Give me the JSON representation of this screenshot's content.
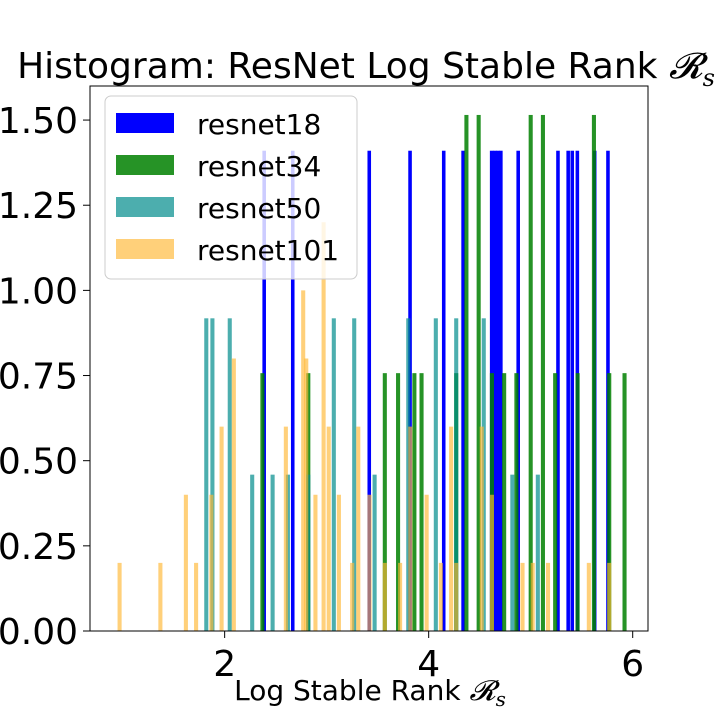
{
  "chart_data": {
    "type": "bar",
    "histogram": true,
    "title": "Histogram: ResNet Log Stable Rank ",
    "title_math": "𝓡",
    "title_sub": "s",
    "xlabel": "Log Stable Rank ",
    "xlabel_math": "𝓡",
    "xlabel_sub": "s",
    "ylabel": "",
    "xlim": [
      0.68,
      6.15
    ],
    "ylim": [
      0,
      1.6
    ],
    "xticks": [
      2,
      4,
      6
    ],
    "xtick_labels": [
      "2",
      "4",
      "6"
    ],
    "yticks": [
      0,
      0.25,
      0.5,
      0.75,
      1.0,
      1.25,
      1.5
    ],
    "ytick_labels": [
      "0.00",
      "0.25",
      "0.50",
      "0.75",
      "1.00",
      "1.25",
      "1.50"
    ],
    "grid": false,
    "legend_position": "top-left",
    "series": [
      {
        "name": "resnet18",
        "color": "#0000ff",
        "opacity": 1.0,
        "bin_width": 0.035,
        "bars": [
          [
            2.37,
            1.41
          ],
          [
            2.65,
            1.41
          ],
          [
            3.4,
            1.41
          ],
          [
            3.8,
            1.41
          ],
          [
            4.13,
            1.41
          ],
          [
            4.32,
            1.41
          ],
          [
            4.6,
            1.41
          ],
          [
            4.63,
            1.41
          ],
          [
            4.66,
            1.41
          ],
          [
            4.69,
            1.41
          ],
          [
            4.86,
            1.41
          ],
          [
            5.25,
            1.41
          ],
          [
            5.35,
            1.41
          ],
          [
            5.39,
            1.41
          ],
          [
            5.44,
            1.41
          ],
          [
            5.61,
            1.41
          ],
          [
            5.74,
            1.41
          ]
        ]
      },
      {
        "name": "resnet34",
        "color": "#008000",
        "opacity": 0.85,
        "bin_width": 0.04,
        "bars": [
          [
            2.35,
            0.757
          ],
          [
            2.8,
            0.757
          ],
          [
            3.55,
            0.757
          ],
          [
            3.68,
            0.757
          ],
          [
            3.84,
            0.757
          ],
          [
            3.91,
            0.757
          ],
          [
            4.25,
            0.757
          ],
          [
            4.35,
            1.515
          ],
          [
            4.47,
            1.515
          ],
          [
            4.6,
            0.757
          ],
          [
            4.72,
            0.757
          ],
          [
            4.84,
            0.757
          ],
          [
            4.98,
            1.515
          ],
          [
            5.1,
            1.515
          ],
          [
            5.22,
            0.757
          ],
          [
            5.44,
            0.757
          ],
          [
            5.6,
            1.515
          ],
          [
            5.75,
            0.757
          ],
          [
            5.9,
            0.757
          ]
        ]
      },
      {
        "name": "resnet50",
        "color": "#008b8b",
        "opacity": 0.7,
        "bin_width": 0.04,
        "bars": [
          [
            1.8,
            0.918
          ],
          [
            1.86,
            0.918
          ],
          [
            2.03,
            0.918
          ],
          [
            2.25,
            0.459
          ],
          [
            2.45,
            0.459
          ],
          [
            2.6,
            0.459
          ],
          [
            2.8,
            0.459
          ],
          [
            3.05,
            0.918
          ],
          [
            3.25,
            0.918
          ],
          [
            3.45,
            0.459
          ],
          [
            3.78,
            0.918
          ],
          [
            4.05,
            0.918
          ],
          [
            4.25,
            0.918
          ],
          [
            4.52,
            0.918
          ],
          [
            4.8,
            0.459
          ],
          [
            5.05,
            0.459
          ]
        ]
      },
      {
        "name": "resnet101",
        "color": "#ffb732",
        "opacity": 0.65,
        "bin_width": 0.04,
        "bars": [
          [
            0.95,
            0.2
          ],
          [
            1.35,
            0.2
          ],
          [
            1.6,
            0.4
          ],
          [
            1.7,
            0.2
          ],
          [
            1.85,
            0.4
          ],
          [
            1.95,
            0.6
          ],
          [
            2.07,
            0.8
          ],
          [
            2.58,
            0.6
          ],
          [
            2.75,
            1.0
          ],
          [
            2.78,
            0.8
          ],
          [
            2.87,
            0.4
          ],
          [
            2.95,
            1.2
          ],
          [
            3.0,
            0.6
          ],
          [
            3.1,
            0.4
          ],
          [
            3.23,
            0.2
          ],
          [
            3.29,
            0.6
          ],
          [
            3.4,
            0.4
          ],
          [
            3.55,
            0.2
          ],
          [
            3.7,
            0.2
          ],
          [
            3.8,
            0.6
          ],
          [
            3.96,
            0.4
          ],
          [
            4.1,
            0.2
          ],
          [
            4.2,
            0.6
          ],
          [
            4.25,
            0.2
          ],
          [
            4.5,
            0.6
          ],
          [
            4.6,
            0.4
          ],
          [
            4.9,
            0.2
          ],
          [
            5.0,
            0.2
          ],
          [
            5.15,
            0.2
          ],
          [
            5.55,
            0.2
          ],
          [
            5.75,
            0.2
          ]
        ]
      }
    ]
  }
}
